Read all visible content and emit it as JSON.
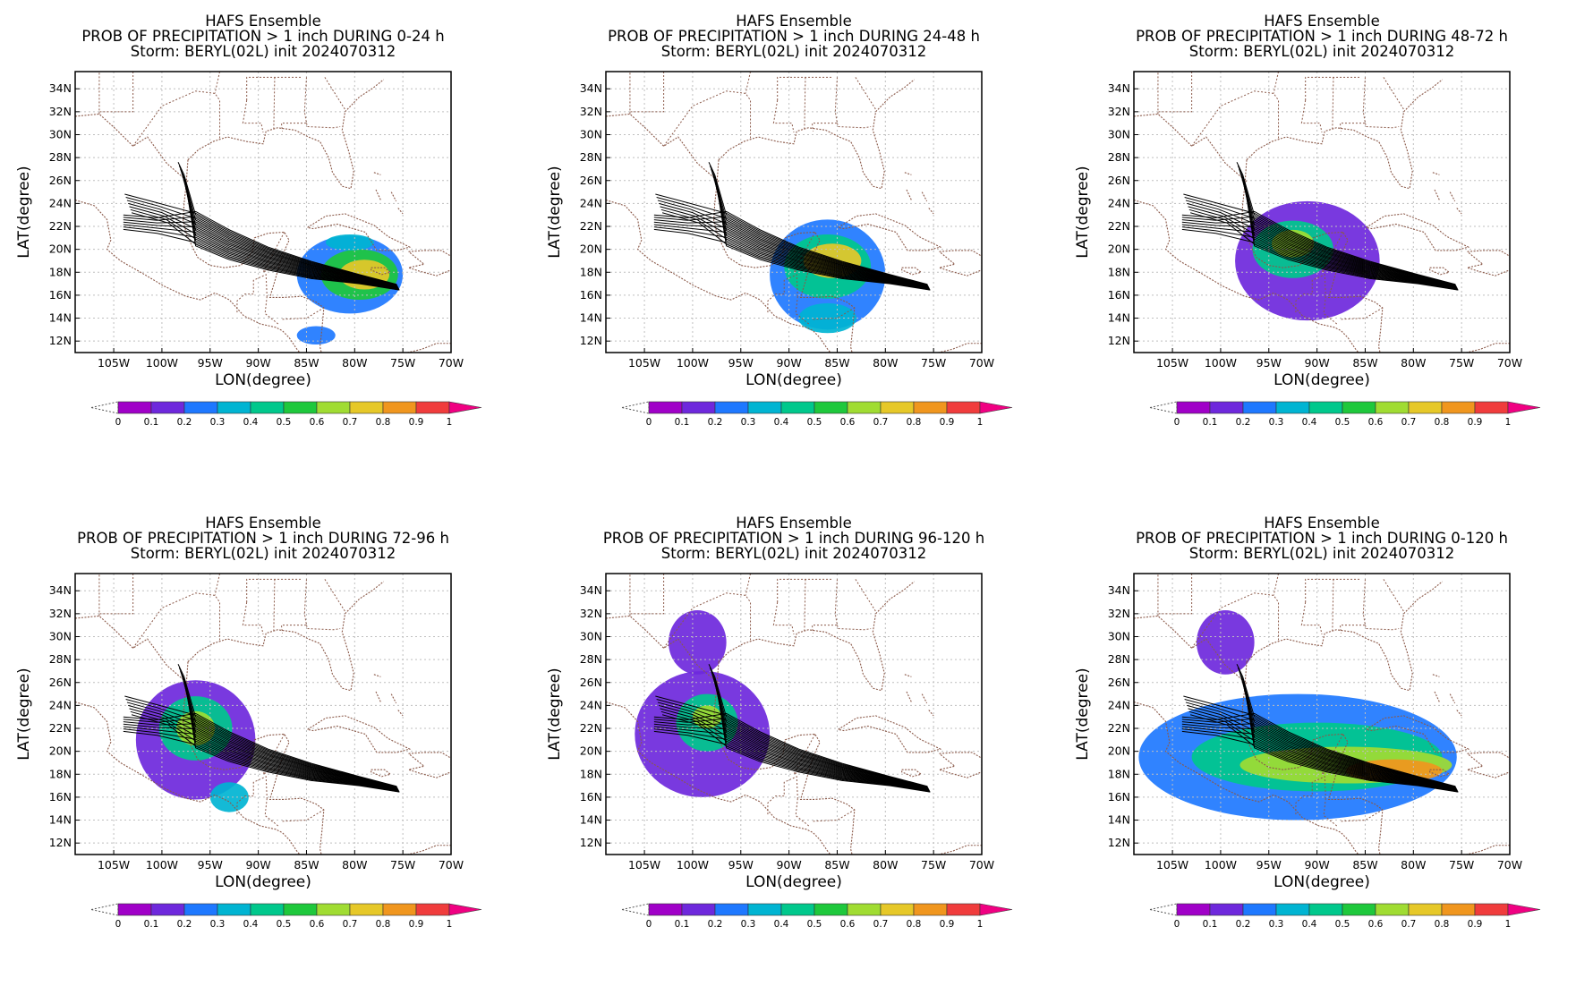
{
  "colors": {
    "frame": "#000000",
    "grid": "#bfbfbf",
    "coast": "#8b5a4a",
    "track": "#000000",
    "colorbar": [
      "#a000c8",
      "#6e28dc",
      "#1e78ff",
      "#00b4d2",
      "#00c88c",
      "#1ec83c",
      "#a0dc32",
      "#e6c828",
      "#f0961e",
      "#f03c3c",
      "#f00082"
    ]
  },
  "map": {
    "lon_range": [
      -109,
      -70
    ],
    "lat_range": [
      11,
      35.5
    ],
    "lon_ticks": [
      "105W",
      "100W",
      "95W",
      "90W",
      "85W",
      "80W",
      "75W",
      "70W"
    ],
    "lat_ticks": [
      "12N",
      "14N",
      "16N",
      "18N",
      "20N",
      "22N",
      "24N",
      "26N",
      "28N",
      "30N",
      "32N",
      "34N"
    ],
    "xlabel": "LON(degree)",
    "ylabel": "LAT(degree)"
  },
  "colorbar": {
    "labels": [
      "0",
      "0.1",
      "0.2",
      "0.3",
      "0.4",
      "0.5",
      "0.6",
      "0.7",
      "0.8",
      "0.9",
      "1"
    ]
  },
  "panels": [
    {
      "title1": "HAFS Ensemble",
      "title2": "PROB OF PRECIPITATION > 1 inch DURING  0-24 h",
      "title3": "Storm: BERYL(02L) init 2024070312",
      "blobs": [
        {
          "lon": -80.5,
          "lat": 17.8,
          "rlon": 5.5,
          "rlat": 3.4,
          "p": 0.25
        },
        {
          "lon": -79.5,
          "lat": 17.8,
          "rlon": 4.0,
          "rlat": 2.2,
          "p": 0.5
        },
        {
          "lon": -79.0,
          "lat": 17.8,
          "rlon": 2.6,
          "rlat": 1.3,
          "p": 0.75
        },
        {
          "lon": -80.5,
          "lat": 20.6,
          "rlon": 2.5,
          "rlat": 0.7,
          "p": 0.35
        },
        {
          "lon": -84.0,
          "lat": 12.5,
          "rlon": 2.0,
          "rlat": 0.8,
          "p": 0.25
        }
      ]
    },
    {
      "title1": "HAFS Ensemble",
      "title2": "PROB OF PRECIPITATION > 1 inch DURING 24-48 h",
      "title3": "Storm: BERYL(02L) init 2024070312",
      "blobs": [
        {
          "lon": -86.0,
          "lat": 17.8,
          "rlon": 6.0,
          "rlat": 4.8,
          "p": 0.2
        },
        {
          "lon": -86.0,
          "lat": 18.5,
          "rlon": 4.5,
          "rlat": 2.8,
          "p": 0.45
        },
        {
          "lon": -85.5,
          "lat": 19.0,
          "rlon": 3.0,
          "rlat": 1.5,
          "p": 0.7
        },
        {
          "lon": -86.0,
          "lat": 14.0,
          "rlon": 3.0,
          "rlat": 1.3,
          "p": 0.3
        }
      ]
    },
    {
      "title1": "HAFS Ensemble",
      "title2": "PROB OF PRECIPITATION > 1 inch DURING 48-72 h",
      "title3": "Storm: BERYL(02L) init 2024070312",
      "blobs": [
        {
          "lon": -91.0,
          "lat": 19.0,
          "rlon": 7.5,
          "rlat": 5.2,
          "p": 0.18
        },
        {
          "lon": -92.5,
          "lat": 20.0,
          "rlon": 4.2,
          "rlat": 2.5,
          "p": 0.4
        },
        {
          "lon": -92.5,
          "lat": 20.5,
          "rlon": 2.2,
          "rlat": 1.2,
          "p": 0.6
        }
      ]
    },
    {
      "title1": "HAFS Ensemble",
      "title2": "PROB OF PRECIPITATION > 1 inch DURING 72-96 h",
      "title3": "Storm: BERYL(02L) init 2024070312",
      "blobs": [
        {
          "lon": -96.5,
          "lat": 21.0,
          "rlon": 6.2,
          "rlat": 5.2,
          "p": 0.18
        },
        {
          "lon": -96.5,
          "lat": 22.0,
          "rlon": 3.8,
          "rlat": 2.8,
          "p": 0.4
        },
        {
          "lon": -96.5,
          "lat": 22.0,
          "rlon": 2.0,
          "rlat": 1.5,
          "p": 0.65
        },
        {
          "lon": -93.0,
          "lat": 16.0,
          "rlon": 2.0,
          "rlat": 1.3,
          "p": 0.3
        }
      ]
    },
    {
      "title1": "HAFS Ensemble",
      "title2": "PROB OF PRECIPITATION > 1 inch DURING 96-120 h",
      "title3": "Storm: BERYL(02L) init 2024070312",
      "blobs": [
        {
          "lon": -99.0,
          "lat": 21.5,
          "rlon": 7.0,
          "rlat": 5.5,
          "p": 0.18
        },
        {
          "lon": -99.5,
          "lat": 29.5,
          "rlon": 3.0,
          "rlat": 2.8,
          "p": 0.15
        },
        {
          "lon": -98.5,
          "lat": 22.5,
          "rlon": 3.2,
          "rlat": 2.5,
          "p": 0.4
        },
        {
          "lon": -98.5,
          "lat": 23.0,
          "rlon": 1.5,
          "rlat": 1.0,
          "p": 0.6
        }
      ]
    },
    {
      "title1": "HAFS Ensemble",
      "title2": "PROB OF PRECIPITATION > 1 inch DURING 0-120 h",
      "title3": "Storm: BERYL(02L) init 2024070312",
      "blobs": [
        {
          "lon": -92.0,
          "lat": 19.5,
          "rlon": 16.5,
          "rlat": 5.5,
          "p": 0.2
        },
        {
          "lon": -99.5,
          "lat": 29.5,
          "rlon": 3.0,
          "rlat": 2.8,
          "p": 0.15
        },
        {
          "lon": -90.0,
          "lat": 19.5,
          "rlon": 13.0,
          "rlat": 3.0,
          "p": 0.4
        },
        {
          "lon": -87.0,
          "lat": 18.8,
          "rlon": 11.0,
          "rlat": 1.6,
          "p": 0.65
        },
        {
          "lon": -82.0,
          "lat": 18.3,
          "rlon": 5.0,
          "rlat": 1.0,
          "p": 0.82
        }
      ]
    }
  ]
}
